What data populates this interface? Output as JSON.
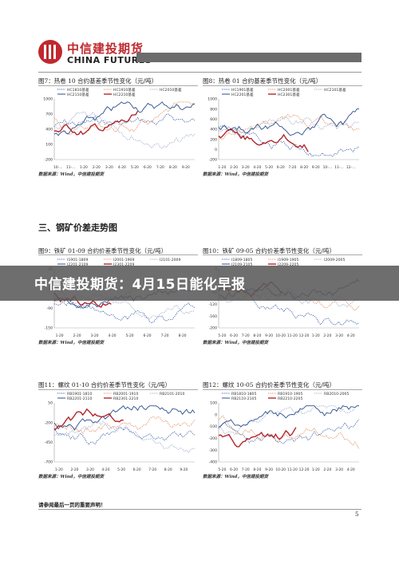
{
  "header": {
    "logo_cn": "中信建投期货",
    "logo_en": "CHINA FUTURES"
  },
  "section_title": "三、钢矿价差走势图",
  "banner": "中信建投期货：4月15日能化早报",
  "footnote": "请参阅最后一页的重要声明！",
  "page_number": "5",
  "figures": [
    {
      "id": "fig7",
      "title": "图7：热卷 10 合约基差季节性变化（元/吨）",
      "source": "数据来源：Wind，中信建投期货",
      "legend": [
        "HC1810基差",
        "HC1910基差",
        "HC2010基差",
        "HC2110基差",
        "HC2210基差"
      ],
      "y_ticks": [
        "1000",
        "700",
        "400",
        "100",
        "-200"
      ],
      "x_ticks": [
        "10-…",
        "11-…",
        "1-20",
        "2-20",
        "3-20",
        "4-20",
        "5-20",
        "6-20",
        "7-20",
        "8-20",
        "9-20"
      ]
    },
    {
      "id": "fig8",
      "title": "图8：热卷 01 合约基差季节性变化（元/吨）",
      "source": "数据来源：Wind，中信建投期货",
      "legend": [
        "HC1901基差",
        "HC2001基差",
        "HC2101基差",
        "HC2201基差",
        "HC2301基差"
      ],
      "y_ticks": [
        "1000",
        "800",
        "600",
        "400",
        "200",
        "0",
        "-200"
      ],
      "x_ticks": [
        "1-20",
        "2-20",
        "3-20",
        "4-20",
        "5-20",
        "6-20",
        "7-20",
        "8-20",
        "9-20",
        "10-…",
        "11-…",
        "12-…"
      ]
    },
    {
      "id": "fig9",
      "title": "图9：铁矿 01-09 合约价差季节性变化（元/吨）",
      "source": "数据来源：Wind，中信建投期货",
      "legend": [
        "I1901-1809",
        "I2001-1909",
        "I2101-2009",
        "I2201-2109",
        "I2301-2209"
      ],
      "y_ticks": [
        "30",
        "-30",
        "-90",
        "-150"
      ],
      "x_ticks": [
        "1-20",
        "2-20",
        "3-20",
        "4-20",
        "5-20",
        "6-20",
        "7-20",
        "8-20"
      ]
    },
    {
      "id": "fig10",
      "title": "图10：铁矿 09-05 合约价差季节性变化（元/吨）",
      "source": "数据来源：Wind，中信建投期货",
      "legend": [
        "I1809-1805",
        "I1909-1905",
        "I2009-2005",
        "I2109-2105",
        "I2209-2205"
      ],
      "y_ticks": [
        "0",
        "-40",
        "-80",
        "-120",
        "-160",
        "-200"
      ],
      "x_ticks": [
        "5-20",
        "6-20",
        "7-20",
        "8-20",
        "9-20",
        "10-20",
        "11-20",
        "12-20",
        "1-20",
        "2-20",
        "3-20",
        "4-20"
      ]
    },
    {
      "id": "fig11",
      "title": "图11：螺纹 01-10 合约价差季节性变化（元/吨）",
      "source": "数据来源：Wind，中信建投期货",
      "legend": [
        "RB1901-1810",
        "RB2001-1910",
        "RB2101-2010",
        "RB2201-2110",
        "RB2301-2210"
      ],
      "y_ticks": [
        "50",
        "-200",
        "-450",
        "-700"
      ],
      "x_ticks": [
        "1-20",
        "2-20",
        "3-20",
        "4-20",
        "5-20",
        "6-20",
        "7-20",
        "8-20",
        "9-20"
      ]
    },
    {
      "id": "fig12",
      "title": "图12：螺纹 10-05 合约价差季节性变化（元/吨）",
      "source": "数据来源：Wind，中信建投期货",
      "legend": [
        "RB1810-1805",
        "RB1910-1905",
        "RB2010-2005",
        "RB2110-2105",
        "RB2210-2205"
      ],
      "y_ticks": [
        "100",
        "0",
        "-100",
        "-200",
        "-300",
        "-400"
      ],
      "x_ticks": [
        "5-20",
        "6-20",
        "7-20",
        "8-20",
        "9-20",
        "10-20",
        "11-20",
        "12-20",
        "1-20",
        "2-20",
        "3-20",
        "4-20"
      ]
    }
  ],
  "colors": {
    "brand_red": "#c0282e",
    "series": [
      "#3a5fa8",
      "#e08a5a",
      "#9aa8c8",
      "#2b4f8f",
      "#b3262b"
    ]
  }
}
